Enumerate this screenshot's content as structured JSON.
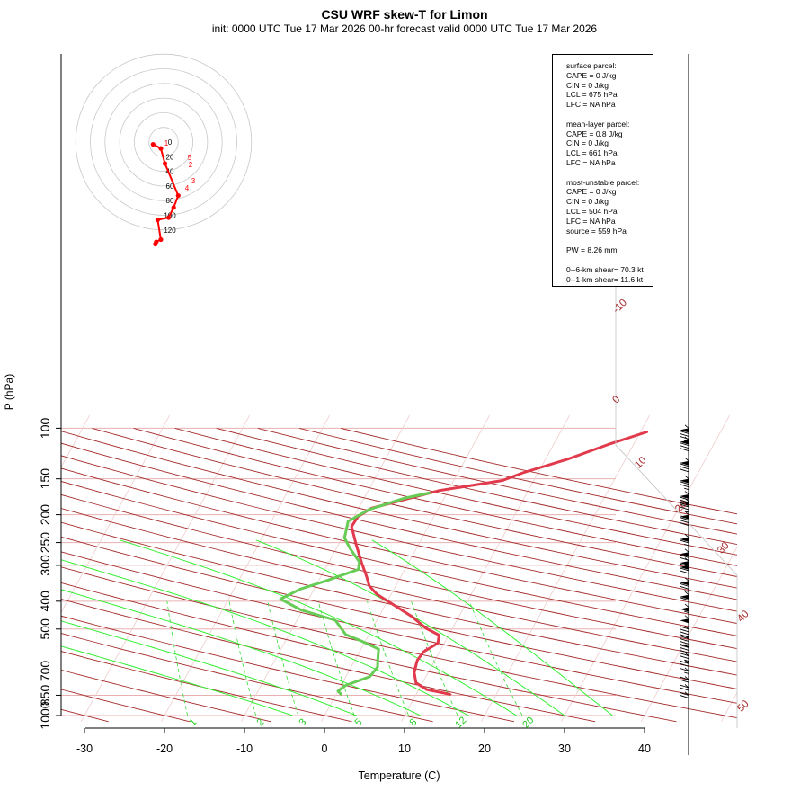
{
  "title": "CSU WRF skew-T for Limon",
  "subtitle": "init: 0000 UTC Tue 17 Mar 2026    00-hr forecast valid 0000 UTC Tue 17 Mar 2026",
  "chart_data": {
    "type": "line",
    "xlabel": "Temperature (C)",
    "ylabel": "P (hPa)",
    "x_ticks": [
      -30,
      -20,
      -10,
      0,
      10,
      20,
      30,
      40
    ],
    "y_ticks": [
      100,
      150,
      200,
      250,
      300,
      400,
      500,
      700,
      850,
      1000
    ],
    "y_scale": "log",
    "series": [
      {
        "values": [
          [
            14.2,
            843
          ],
          [
            11,
            812
          ],
          [
            9.2,
            770
          ],
          [
            8.2,
            705
          ],
          [
            7.8,
            642
          ],
          [
            8,
            600
          ],
          [
            9.2,
            560
          ],
          [
            8.8,
            525
          ],
          [
            6.7,
            497
          ],
          [
            4.1,
            452
          ],
          [
            1.2,
            414
          ],
          [
            -1.8,
            378
          ],
          [
            -3.3,
            354
          ],
          [
            -4.3,
            328
          ],
          [
            -5.9,
            293
          ],
          [
            -7.8,
            254
          ],
          [
            -9.6,
            220
          ],
          [
            -9.5,
            203
          ],
          [
            -8.4,
            190
          ],
          [
            -5.1,
            178
          ],
          [
            -1.2,
            165
          ],
          [
            6.1,
            152
          ],
          [
            8.1,
            143
          ],
          [
            12.8,
            128
          ],
          [
            16.8,
            114
          ],
          [
            20.8,
            103
          ]
        ]
      },
      {
        "values": [
          [
            0.6,
            843
          ],
          [
            0,
            822
          ],
          [
            0.6,
            785
          ],
          [
            3,
            732
          ],
          [
            3.3,
            678
          ],
          [
            2.8,
            637
          ],
          [
            2.2,
            587
          ],
          [
            -0.3,
            553
          ],
          [
            -2.9,
            523
          ],
          [
            -5.2,
            466
          ],
          [
            -10.2,
            429
          ],
          [
            -13.5,
            393
          ],
          [
            -11.7,
            363
          ],
          [
            -9.1,
            340
          ],
          [
            -5.8,
            310
          ],
          [
            -6.2,
            292
          ],
          [
            -8.3,
            262
          ],
          [
            -9.7,
            241
          ],
          [
            -10.4,
            211
          ],
          [
            -8.6,
            192
          ],
          [
            -4.9,
            175
          ],
          [
            -2.2,
            168
          ]
        ]
      }
    ],
    "parcel_path": [
      [
        14.4,
        845
      ],
      [
        11,
        815
      ],
      [
        9.2,
        775
      ],
      [
        8.4,
        710
      ],
      [
        8,
        655
      ],
      [
        7.8,
        620
      ],
      [
        8.1,
        580
      ]
    ],
    "isotherm_labels": [
      "-10",
      "0",
      "10",
      "20",
      "30",
      "40",
      "50"
    ],
    "mixing_ratio_labels": [
      "1",
      "2",
      "3",
      "5",
      "8",
      "12",
      "20"
    ],
    "hodograph": {
      "ring_labels": [
        "0",
        "20",
        "40",
        "60",
        "80",
        "100",
        "120"
      ],
      "height_labels": [
        "1",
        "5",
        "2",
        "3",
        "4"
      ],
      "points": [
        [
          -2.3,
          -0.5
        ],
        [
          -0.6,
          -1.4
        ],
        [
          0.3,
          -4.7
        ],
        [
          3.2,
          -11.7
        ],
        [
          2.2,
          -14.3
        ],
        [
          1.1,
          -16.5
        ],
        [
          -1.3,
          -17
        ],
        [
          -0.6,
          -21.3
        ],
        [
          -1.6,
          -21.8
        ],
        [
          -1.8,
          -22.3
        ]
      ]
    },
    "wind_profile_kt": [
      [
        100,
        15,
        85
      ],
      [
        110,
        14,
        80
      ],
      [
        130,
        12,
        80
      ],
      [
        150,
        14,
        75
      ],
      [
        170,
        10,
        80
      ],
      [
        180,
        12,
        75
      ],
      [
        200,
        18,
        80
      ],
      [
        240,
        20,
        65
      ],
      [
        270,
        22,
        70
      ],
      [
        290,
        20,
        65
      ],
      [
        300,
        20,
        70
      ],
      [
        340,
        22,
        75
      ],
      [
        380,
        20,
        60
      ],
      [
        420,
        22,
        55
      ],
      [
        460,
        20,
        50
      ],
      [
        500,
        25,
        40
      ],
      [
        540,
        25,
        40
      ],
      [
        580,
        20,
        30
      ],
      [
        620,
        15,
        25
      ],
      [
        660,
        10,
        20
      ],
      [
        700,
        8,
        15
      ],
      [
        750,
        5,
        20
      ],
      [
        800,
        4,
        20
      ],
      [
        850,
        3,
        20
      ]
    ]
  },
  "info": {
    "surface_title": "surface parcel:",
    "surface_cape": "CAPE = 0 J/kg",
    "surface_cin": "CIN = 0 J/kg",
    "surface_lcl": "LCL = 675 hPa",
    "surface_lfc": "LFC = NA hPa",
    "mean_title": "mean-layer parcel:",
    "mean_cape": "CAPE = 0.8 J/kg",
    "mean_cin": "CIN = 0 J/kg",
    "mean_lcl": "LCL = 661 hPa",
    "mean_lfc": "LFC = NA hPa",
    "mu_title": "most-unstable parcel:",
    "mu_cape": "CAPE = 0 J/kg",
    "mu_cin": "CIN = 0 J/kg",
    "mu_lcl": "LCL = 504 hPa",
    "mu_lfc": "LFC = NA hPa",
    "mu_source": "source = 559 hPa",
    "pw": "PW =  8.26 mm",
    "shear6": "0--6-km shear= 70.3 kt",
    "shear1": "0--1-km shear= 11.6 kt"
  },
  "colors": {
    "temperature": "#e03a4c",
    "dewpoint": "#66cc55",
    "isotherm": "#a52a2a",
    "mixing_ratio": "#33dd33",
    "hodograph": "#ff0000",
    "grid": "#e8b0b0"
  }
}
